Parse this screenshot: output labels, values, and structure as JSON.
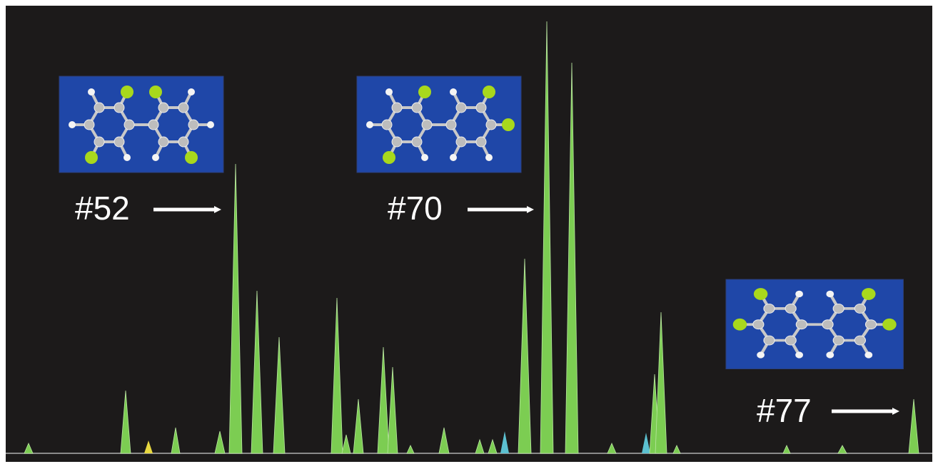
{
  "annotations": [
    {
      "label": "#52"
    },
    {
      "label": "#70"
    },
    {
      "label": "#77"
    }
  ]
}
